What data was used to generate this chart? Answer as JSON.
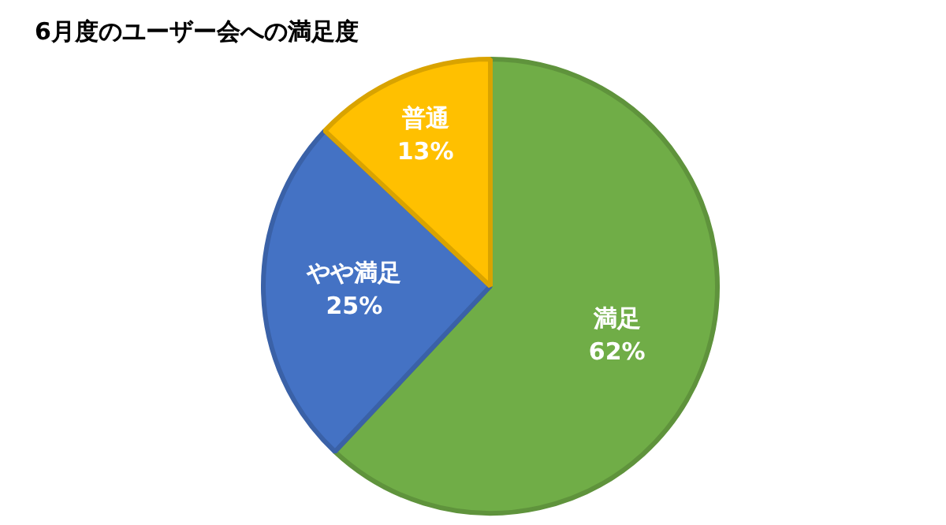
{
  "chart_data": {
    "type": "pie",
    "title": "6月度のユーザー会への満足度",
    "categories": [
      "満足",
      "やや満足",
      "普通"
    ],
    "values": [
      62,
      25,
      13
    ],
    "colors": [
      "#70ad47",
      "#4472c4",
      "#ffc000"
    ],
    "value_labels": [
      "62%",
      "25%",
      "13%"
    ],
    "legend": false
  }
}
